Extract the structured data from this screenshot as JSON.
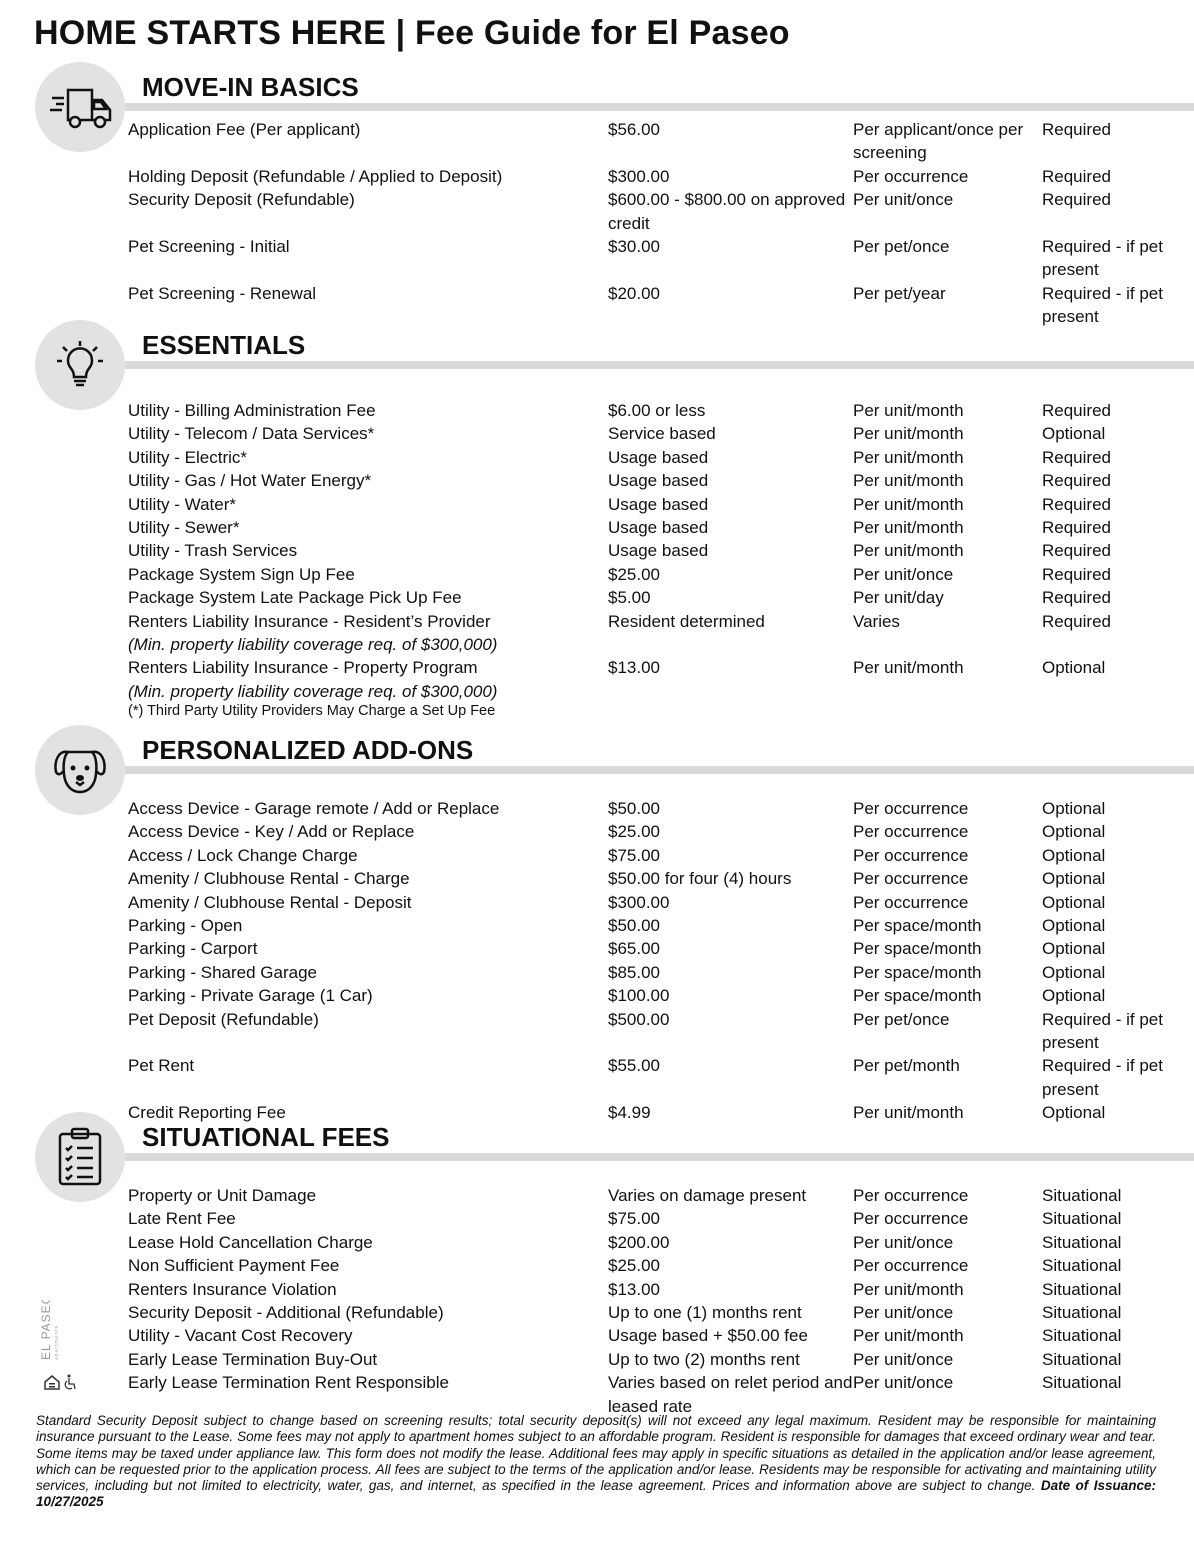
{
  "title": "HOME STARTS HERE | Fee Guide for El Paseo",
  "sections": [
    {
      "title": "MOVE-IN BASICS",
      "icon": "truck-icon",
      "rows": [
        {
          "name": "Application Fee (Per applicant)",
          "amount": "$56.00",
          "frequency": "Per applicant/once per screening",
          "requirement": "Required"
        },
        {
          "name": "Holding Deposit (Refundable / Applied to Deposit)",
          "amount": "$300.00",
          "frequency": "Per occurrence",
          "requirement": "Required"
        },
        {
          "name": "Security Deposit (Refundable)",
          "amount": "$600.00 - $800.00 on approved credit",
          "frequency": "Per unit/once",
          "requirement": "Required"
        },
        {
          "name": "Pet Screening - Initial",
          "amount": "$30.00",
          "frequency": "Per pet/once",
          "requirement": "Required - if pet present"
        },
        {
          "name": "Pet Screening - Renewal",
          "amount": "$20.00",
          "frequency": "Per pet/year",
          "requirement": "Required - if pet present"
        }
      ]
    },
    {
      "title": "ESSENTIALS",
      "icon": "lightbulb-icon",
      "rows": [
        {
          "name": "Utility - Billing Administration Fee",
          "amount": "$6.00 or less",
          "frequency": "Per unit/month",
          "requirement": "Required"
        },
        {
          "name": "Utility - Telecom / Data Services*",
          "amount": "Service based",
          "frequency": "Per unit/month",
          "requirement": "Optional"
        },
        {
          "name": "Utility - Electric*",
          "amount": "Usage based",
          "frequency": "Per unit/month",
          "requirement": "Required"
        },
        {
          "name": "Utility - Gas / Hot Water Energy*",
          "amount": "Usage based",
          "frequency": "Per unit/month",
          "requirement": "Required"
        },
        {
          "name": "Utility - Water*",
          "amount": "Usage based",
          "frequency": "Per unit/month",
          "requirement": "Required"
        },
        {
          "name": "Utility - Sewer*",
          "amount": "Usage based",
          "frequency": "Per unit/month",
          "requirement": "Required"
        },
        {
          "name": "Utility - Trash Services",
          "amount": "Usage based",
          "frequency": "Per unit/month",
          "requirement": "Required"
        },
        {
          "name": "Package System Sign Up Fee",
          "amount": "$25.00",
          "frequency": "Per unit/once",
          "requirement": "Required"
        },
        {
          "name": "Package System Late Package Pick Up Fee",
          "amount": "$5.00",
          "frequency": "Per unit/day",
          "requirement": "Required"
        },
        {
          "name": "Renters Liability Insurance - Resident’s Provider",
          "note": "(Min. property liability coverage req. of $300,000)",
          "amount": "Resident determined",
          "frequency": "Varies",
          "requirement": "Required"
        },
        {
          "name": "Renters Liability Insurance - Property Program",
          "note": "(Min. property liability coverage req. of $300,000)",
          "amount": "$13.00",
          "frequency": "Per unit/month",
          "requirement": "Optional"
        }
      ],
      "footnote": "(*) Third Party Utility Providers May Charge a Set Up Fee"
    },
    {
      "title": "PERSONALIZED ADD-ONS",
      "icon": "dog-icon",
      "rows": [
        {
          "name": "Access Device - Garage remote / Add or Replace",
          "amount": "$50.00",
          "frequency": "Per occurrence",
          "requirement": "Optional"
        },
        {
          "name": "Access Device - Key / Add or Replace",
          "amount": "$25.00",
          "frequency": "Per occurrence",
          "requirement": "Optional"
        },
        {
          "name": "Access / Lock Change Charge",
          "amount": "$75.00",
          "frequency": "Per occurrence",
          "requirement": "Optional"
        },
        {
          "name": "Amenity / Clubhouse Rental - Charge",
          "amount": "$50.00 for four (4) hours",
          "frequency": "Per occurrence",
          "requirement": "Optional"
        },
        {
          "name": "Amenity / Clubhouse Rental - Deposit",
          "amount": "$300.00",
          "frequency": "Per occurrence",
          "requirement": "Optional"
        },
        {
          "name": "Parking - Open",
          "amount": "$50.00",
          "frequency": "Per space/month",
          "requirement": "Optional"
        },
        {
          "name": "Parking - Carport",
          "amount": "$65.00",
          "frequency": "Per space/month",
          "requirement": "Optional"
        },
        {
          "name": "Parking - Shared Garage",
          "amount": "$85.00",
          "frequency": "Per space/month",
          "requirement": "Optional"
        },
        {
          "name": "Parking - Private Garage (1 Car)",
          "amount": "$100.00",
          "frequency": "Per space/month",
          "requirement": "Optional"
        },
        {
          "name": "Pet Deposit (Refundable)",
          "amount": "$500.00",
          "frequency": "Per pet/once",
          "requirement": "Required - if pet present"
        },
        {
          "name": "Pet Rent",
          "amount": "$55.00",
          "frequency": "Per pet/month",
          "requirement": "Required - if pet present"
        },
        {
          "name": "Credit Reporting Fee",
          "amount": "$4.99",
          "frequency": "Per unit/month",
          "requirement": "Optional"
        }
      ]
    },
    {
      "title": "SITUATIONAL FEES",
      "icon": "clipboard-checklist-icon",
      "rows": [
        {
          "name": "Property or Unit Damage",
          "amount": "Varies on damage present",
          "frequency": "Per occurrence",
          "requirement": "Situational"
        },
        {
          "name": "Late Rent Fee",
          "amount": "$75.00",
          "frequency": "Per occurrence",
          "requirement": "Situational"
        },
        {
          "name": "Lease Hold Cancellation Charge",
          "amount": "$200.00",
          "frequency": "Per unit/once",
          "requirement": "Situational"
        },
        {
          "name": "Non Sufficient Payment Fee",
          "amount": "$25.00",
          "frequency": "Per occurrence",
          "requirement": "Situational"
        },
        {
          "name": "Renters Insurance Violation",
          "amount": "$13.00",
          "frequency": "Per unit/month",
          "requirement": "Situational"
        },
        {
          "name": "Security Deposit - Additional (Refundable)",
          "amount": "Up to one (1) months rent",
          "frequency": "Per unit/once",
          "requirement": "Situational"
        },
        {
          "name": "Utility - Vacant Cost Recovery",
          "amount": "Usage based + $50.00 fee",
          "frequency": "Per unit/month",
          "requirement": "Situational"
        },
        {
          "name": "Early Lease Termination Buy-Out",
          "amount": "Up to two (2) months rent",
          "frequency": "Per unit/once",
          "requirement": "Situational"
        },
        {
          "name": "Early Lease Termination Rent Responsible",
          "amount": "Varies based on relet period and leased rate",
          "frequency": "Per unit/once",
          "requirement": "Situational"
        }
      ]
    }
  ],
  "logo": {
    "text": "EL PASEO",
    "subtext": "apartments",
    "icons": [
      "equal-housing-icon",
      "accessibility-icon"
    ]
  },
  "footer": {
    "text": "Standard Security Deposit subject to change based on screening results; total security deposit(s) will not exceed any legal maximum. Resident may be responsible for maintaining insurance pursuant to the Lease. Some fees may not apply to apartment homes subject to an affordable program. Resident is responsible for damages that exceed ordinary wear and tear. Some items may be taxed under appliance law. This form does not modify the lease. Additional fees may apply in specific situations as detailed in the application and/or lease agreement, which can be requested prior to the application process. All fees are subject to the terms of the application and/or lease. Residents may be responsible for activating and maintaining utility services, including but not limited to electricity, water, gas, and internet, as specified in the lease agreement. Prices and information above are subject to change. ",
    "issuance": "Date of Issuance: 10/27/2025"
  }
}
